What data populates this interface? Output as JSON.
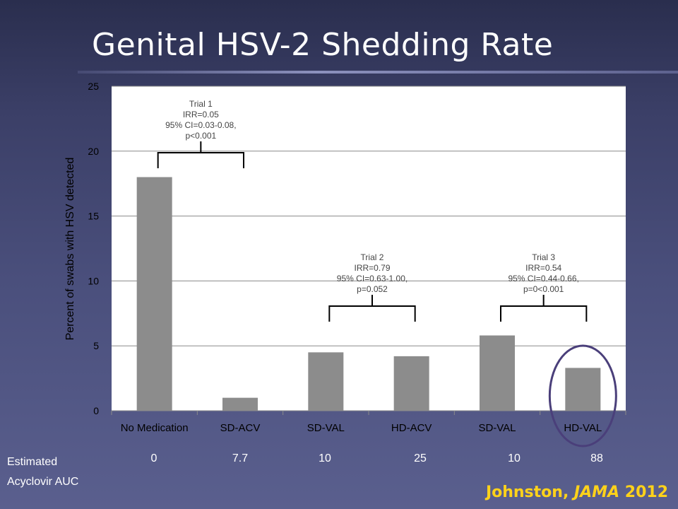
{
  "slide": {
    "title": "Genital HSV-2 Shedding Rate",
    "citation_author": "Johnston, ",
    "citation_journal": "JAMA",
    "citation_year": " 2012",
    "auc_label_line1": "Estimated",
    "auc_label_line2": "Acyclovir AUC",
    "auc_values": [
      "0",
      "7.7",
      "10",
      "25",
      "10",
      "88"
    ]
  },
  "chart_data": {
    "type": "bar",
    "categories": [
      "No Medication",
      "SD-ACV",
      "SD-VAL",
      "HD-ACV",
      "SD-VAL",
      "HD-VAL"
    ],
    "values": [
      18,
      1,
      4.5,
      4.2,
      5.8,
      3.3
    ],
    "ylabel": "Percent of swabs with HSV detected",
    "xlabel": "",
    "ylim": [
      0,
      25
    ],
    "yticks": [
      0,
      5,
      10,
      15,
      20,
      25
    ],
    "grid": true,
    "bar_color": "#8c8c8c",
    "highlight_color": "#4a3f7a",
    "highlight_category_index": 5,
    "annotations": [
      {
        "lines": [
          "Trial 1",
          "IRR=0.05",
          "95% CI=0.03-0.08,",
          "p<0.001"
        ],
        "bracket": [
          0,
          1
        ]
      },
      {
        "lines": [
          "Trial 2",
          "IRR=0.79",
          "95% CI=0.63-1.00,",
          "p=0.052"
        ],
        "bracket": [
          2,
          3
        ]
      },
      {
        "lines": [
          "Trial 3",
          "IRR=0.54",
          "95% CI=0.44-0.66,",
          "p=0<0.001"
        ],
        "bracket": [
          4,
          5
        ]
      }
    ]
  }
}
